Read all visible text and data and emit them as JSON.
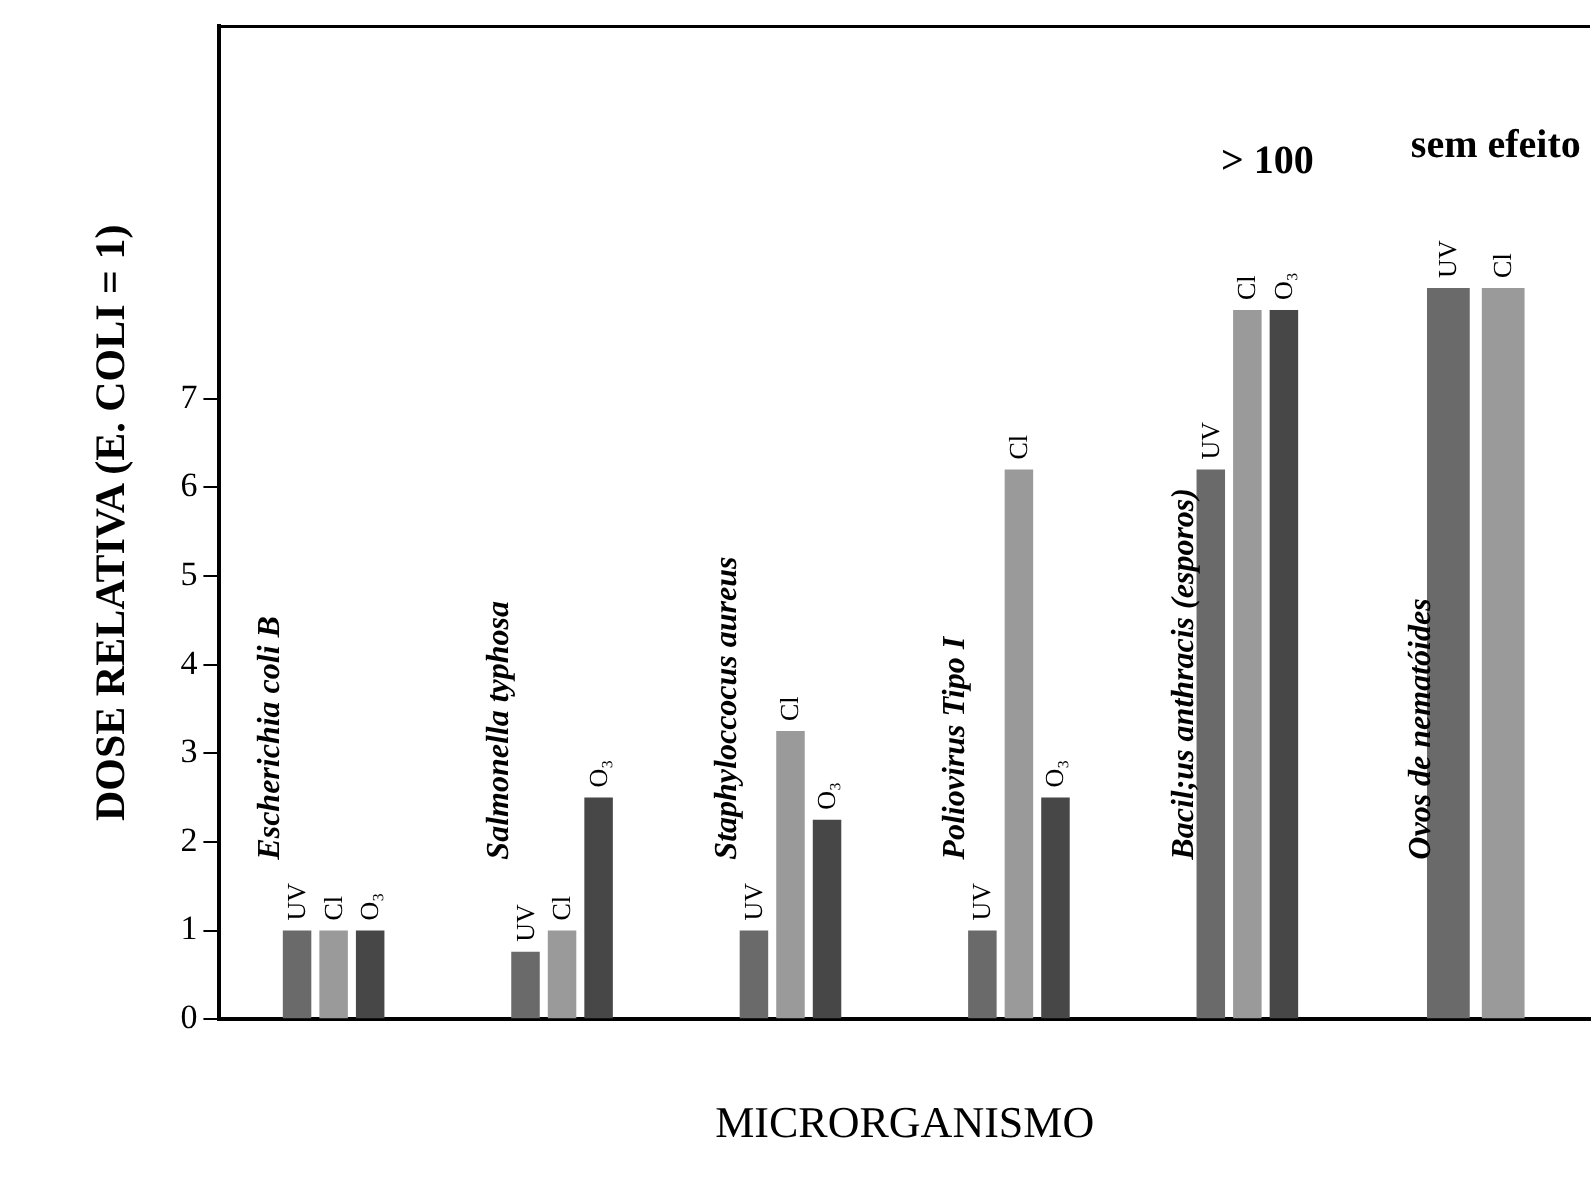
{
  "chart_data": {
    "type": "bar",
    "xlabel": "MICRORGANISMO",
    "ylabel": "DOSE RELATIVA (E. COLI = 1)",
    "categories": [
      "Escherichia coli B",
      "Salmonella typhosa",
      "Staphyloccocus aureus",
      "Poliovirus Tipo I",
      "Bacil;us anthracis (esporos)",
      "Ovos de nematóides"
    ],
    "series": [
      {
        "name": "UV",
        "color": "#6a6a6a",
        "values": [
          1,
          0.76,
          1,
          1,
          6.2,
          8.25
        ]
      },
      {
        "name": "Cl",
        "color": "#9a9a9a",
        "values": [
          1,
          1,
          3.25,
          6.2,
          8.0,
          8.25
        ]
      },
      {
        "name": "O₃",
        "color": "#474747",
        "values": [
          1,
          2.5,
          2.25,
          2.5,
          8.0,
          null
        ]
      }
    ],
    "ylim": [
      0,
      11.2
    ],
    "yticks": [
      0,
      1,
      2,
      3,
      4,
      5,
      6,
      7
    ],
    "grid": false,
    "legend": false,
    "tick_labels": "y",
    "annotations": [
      "> 100",
      "sem efeito"
    ]
  }
}
